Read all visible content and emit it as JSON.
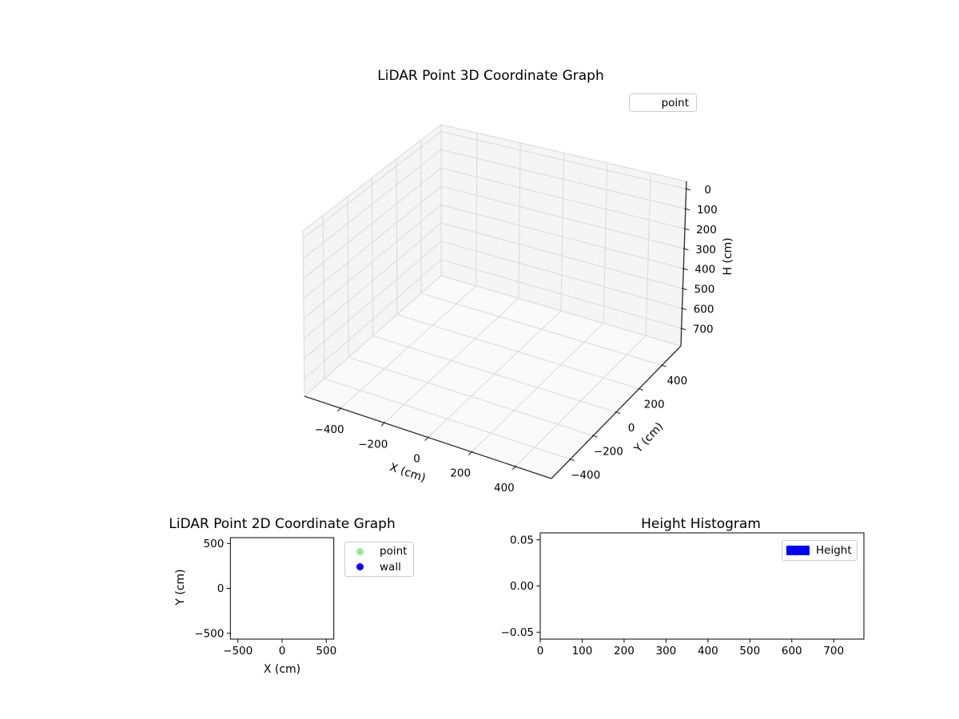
{
  "colors": {
    "point_green": "#90ee90",
    "wall_blue": "#0000ff",
    "height_blue": "#0000ff",
    "grid_gray": "#d9d9d9",
    "pane_wall": "#f5f5f5",
    "pane_floor": "#fafafa",
    "spine_dark": "#2a2a2a"
  },
  "chart_data": [
    {
      "id": "plot3d",
      "type": "scatter3d",
      "title": "LiDAR Point 3D Coordinate Graph",
      "xlabel": "X (cm)",
      "ylabel": "Y (cm)",
      "zlabel": "H (cm)",
      "xticks": [
        -400,
        -200,
        0,
        200,
        400
      ],
      "yticks": [
        -400,
        -200,
        0,
        200,
        400
      ],
      "zticks": [
        0,
        100,
        200,
        300,
        400,
        500,
        600,
        700
      ],
      "xlim": [
        -565,
        565
      ],
      "ylim": [
        -565,
        565
      ],
      "zlim": [
        -37.5,
        787.5
      ],
      "zaxis_inverted": true,
      "grid": true,
      "legend": {
        "position": "upper right",
        "entries": [
          {
            "label": "point",
            "marker": "none"
          }
        ]
      },
      "series": [
        {
          "name": "point",
          "points": []
        }
      ]
    },
    {
      "id": "plot2d",
      "type": "scatter",
      "title": "LiDAR Point 2D Coordinate Graph",
      "xlabel": "X (cm)",
      "ylabel": "Y (cm)",
      "xticks": [
        -500,
        0,
        500
      ],
      "yticks": [
        -500,
        0,
        500
      ],
      "xlim": [
        -585,
        585
      ],
      "ylim": [
        -565,
        565
      ],
      "grid": false,
      "legend": {
        "position": "outside right",
        "entries": [
          {
            "label": "point",
            "color": "#90ee90",
            "marker": "circle"
          },
          {
            "label": "wall",
            "color": "#0000ff",
            "marker": "circle"
          }
        ]
      },
      "series": [
        {
          "name": "point",
          "points": []
        },
        {
          "name": "wall",
          "points": []
        }
      ]
    },
    {
      "id": "height_histogram",
      "type": "histogram",
      "title": "Height Histogram",
      "xlabel": "",
      "ylabel": "",
      "xticks": [
        0,
        100,
        200,
        300,
        400,
        500,
        600,
        700
      ],
      "yticks": [
        -0.05,
        0.0,
        0.05
      ],
      "xlim": [
        0,
        772
      ],
      "ylim": [
        -0.0575,
        0.0575
      ],
      "grid": false,
      "legend": {
        "position": "upper right",
        "entries": [
          {
            "label": "Height",
            "color": "#0000ff",
            "marker": "rect"
          }
        ]
      },
      "values": []
    }
  ]
}
